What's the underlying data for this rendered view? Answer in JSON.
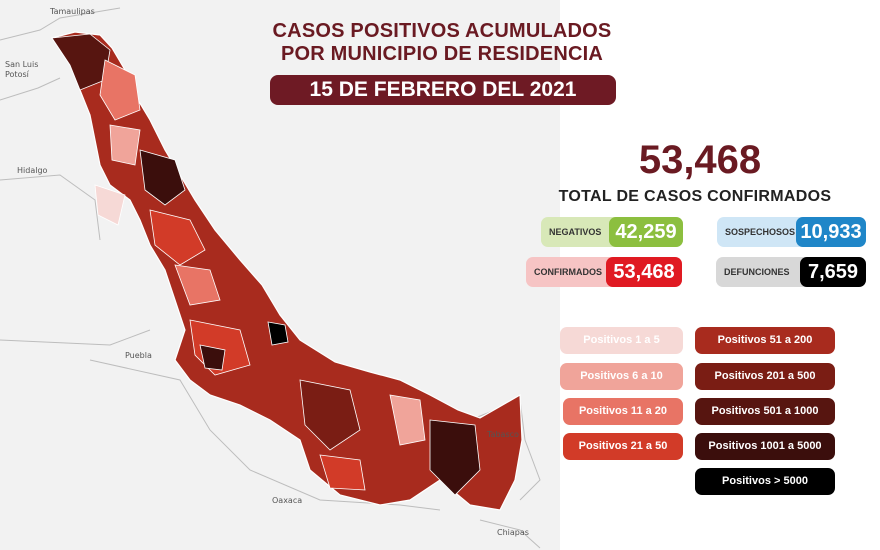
{
  "header": {
    "title_line1": "CASOS POSITIVOS ACUMULADOS",
    "title_line2": "POR MUNICIPIO DE RESIDENCIA",
    "date": "15 DE FEBRERO DEL 2021"
  },
  "summary": {
    "total": "53,468",
    "total_label": "TOTAL DE CASOS CONFIRMADOS",
    "negativos": {
      "label": "NEGATIVOS",
      "value": "42,259"
    },
    "sospechosos": {
      "label": "SOSPECHOSOS",
      "value": "10,933"
    },
    "confirmados": {
      "label": "CONFIRMADOS",
      "value": "53,468"
    },
    "defunciones": {
      "label": "DEFUNCIONES",
      "value": "7,659"
    }
  },
  "legend": [
    {
      "label": "Positivos 1 a 5",
      "color": "#f6d9d6"
    },
    {
      "label": "Positivos 6 a 10",
      "color": "#f0a49a"
    },
    {
      "label": "Positivos 11 a 20",
      "color": "#e87465"
    },
    {
      "label": "Positivos 21 a 50",
      "color": "#d23b28"
    },
    {
      "label": "Positivos 51 a 200",
      "color": "#a82b1e"
    },
    {
      "label": "Positivos 201 a 500",
      "color": "#7a1d14"
    },
    {
      "label": "Positivos 501 a 1000",
      "color": "#571510"
    },
    {
      "label": "Positivos 1001 a 5000",
      "color": "#3b0e0c"
    },
    {
      "label": "Positivos > 5000",
      "color": "#000000"
    }
  ],
  "map": {
    "states": [
      "Tamaulipas",
      "San Luis Potosí",
      "Hidalgo",
      "Puebla",
      "Oaxaca",
      "Tabasco",
      "Chiapas"
    ]
  },
  "colors": {
    "title": "#6a1a22",
    "pill": "#6e1a24",
    "negativos_bg": "#d8e8b8",
    "negativos_val": "#8cbf3f",
    "sospechosos_bg": "#cfe6f6",
    "sospechosos_val": "#1f86c8",
    "confirmados_bg": "#f6c4c4",
    "confirmados_val": "#e01a22",
    "defunciones_bg": "#d8d8d8",
    "defunciones_val": "#000000"
  }
}
